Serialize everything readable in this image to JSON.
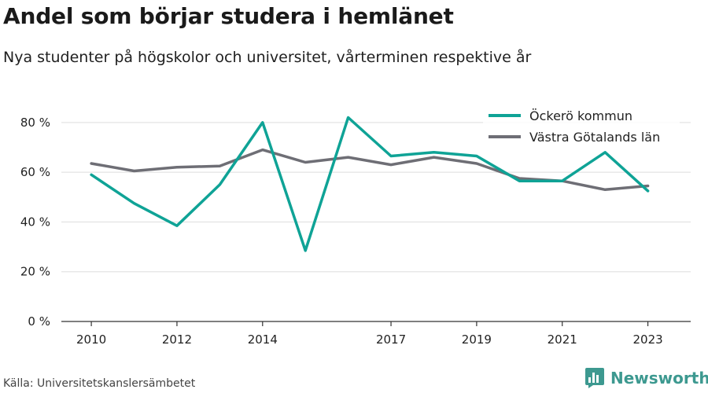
{
  "title": "Andel som börjar studera i hemlänet",
  "subtitle": "Nya studenter på högskolor och universitet, vårterminen respektive år",
  "source": "Källa: Universitetskanslersämbetet",
  "brand": {
    "name": "Newsworthy",
    "icon": "bar-chart-logo-icon",
    "color": "#3d9990"
  },
  "chart_data": {
    "type": "line",
    "x": [
      2010,
      2011,
      2012,
      2013,
      2014,
      2015,
      2016,
      2017,
      2018,
      2019,
      2020,
      2021,
      2022,
      2023
    ],
    "x_ticks": [
      {
        "value": 2010,
        "label": "2010"
      },
      {
        "value": 2012,
        "label": "2012"
      },
      {
        "value": 2014,
        "label": "2014"
      },
      {
        "value": 2017,
        "label": "2017"
      },
      {
        "value": 2019,
        "label": "2019"
      },
      {
        "value": 2021,
        "label": "2021"
      },
      {
        "value": 2023,
        "label": "2023"
      }
    ],
    "y_ticks": [
      {
        "value": 0,
        "label": "0 %"
      },
      {
        "value": 20,
        "label": "20 %"
      },
      {
        "value": 40,
        "label": "40 %"
      },
      {
        "value": 60,
        "label": "60 %"
      },
      {
        "value": 80,
        "label": "80 %"
      }
    ],
    "ylim": [
      0,
      85
    ],
    "xlim": [
      2009.3,
      2024
    ],
    "grid": true,
    "legend_position": "top-right",
    "series": [
      {
        "name": "Öckerö kommun",
        "color": "#0fa396",
        "values": [
          59,
          47.5,
          38.5,
          55,
          80,
          28.5,
          82,
          66.5,
          68,
          66.5,
          56.5,
          56.5,
          68,
          52.5
        ]
      },
      {
        "name": "Västra Götalands län",
        "color": "#6e6e75",
        "values": [
          63.5,
          60.5,
          62,
          62.5,
          69,
          64,
          66,
          63,
          66,
          63.5,
          57.5,
          56.5,
          53,
          54.5
        ]
      }
    ]
  }
}
